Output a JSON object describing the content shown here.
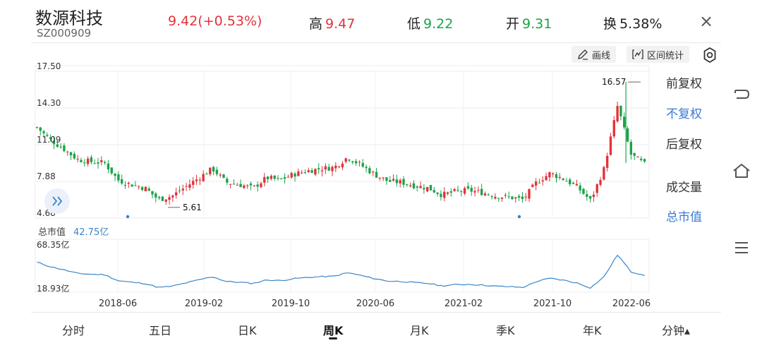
{
  "header": {
    "name": "数源科技",
    "code": "SZ000909",
    "price_change": "9.42(+0.53%)",
    "high_label": "高",
    "high_value": "9.47",
    "low_label": "低",
    "low_value": "9.22",
    "open_label": "开",
    "open_value": "9.31",
    "turnover_label": "换",
    "turnover_value": "5.38%",
    "close_symbol": "×"
  },
  "toolbar": {
    "draw_label": "画线",
    "range_label": "区间统计"
  },
  "right_menu": [
    {
      "label": "前复权",
      "active": false
    },
    {
      "label": "不复权",
      "active": true
    },
    {
      "label": "后复权",
      "active": false
    },
    {
      "label": "成交量",
      "active": false
    },
    {
      "label": "总市值",
      "active": true
    }
  ],
  "price_axis": [
    "17.50",
    "14.30",
    "11.09",
    "7.88",
    "4.68"
  ],
  "annotations": {
    "max_label": "16.57",
    "min_label": "5.61"
  },
  "market_cap": {
    "label": "总市值",
    "value": "42.75亿",
    "axis": [
      "68.35亿",
      "18.93亿"
    ]
  },
  "date_axis": [
    "2018-06",
    "2019-02",
    "2019-10",
    "2020-06",
    "2021-02",
    "2021-10",
    "2022-06"
  ],
  "tabs": [
    {
      "label": "分时",
      "active": false
    },
    {
      "label": "五日",
      "active": false
    },
    {
      "label": "日K",
      "active": false
    },
    {
      "label": "周K",
      "active": true
    },
    {
      "label": "月K",
      "active": false
    },
    {
      "label": "季K",
      "active": false
    },
    {
      "label": "年K",
      "active": false
    },
    {
      "label": "分钟▴",
      "active": false
    }
  ],
  "colors": {
    "up": "#e2333c",
    "down": "#1aa34a",
    "line": "#3a86c8",
    "accent": "#3a7bd5"
  },
  "chart_data": {
    "type": "candlestick",
    "price_ylim": [
      4.68,
      17.5
    ],
    "high_point": 16.57,
    "low_point": 5.61,
    "close_series_approx": [
      12.6,
      11.5,
      10.7,
      9.8,
      9.6,
      9.5,
      8.0,
      7.6,
      7.3,
      6.3,
      6.6,
      7.4,
      8.2,
      9.0,
      7.8,
      7.6,
      7.3,
      8.2,
      8.0,
      8.5,
      8.8,
      9.0,
      9.1,
      10.0,
      9.3,
      8.5,
      7.9,
      7.8,
      7.5,
      7.3,
      6.7,
      7.0,
      7.1,
      6.9,
      6.6,
      6.5,
      6.3,
      7.8,
      8.6,
      8.1,
      7.4,
      6.2,
      9.0,
      14.5,
      10.2,
      9.4
    ],
    "mcap_ylim_yi": [
      18.93,
      68.35
    ],
    "mcap_current_yi": 42.75
  }
}
